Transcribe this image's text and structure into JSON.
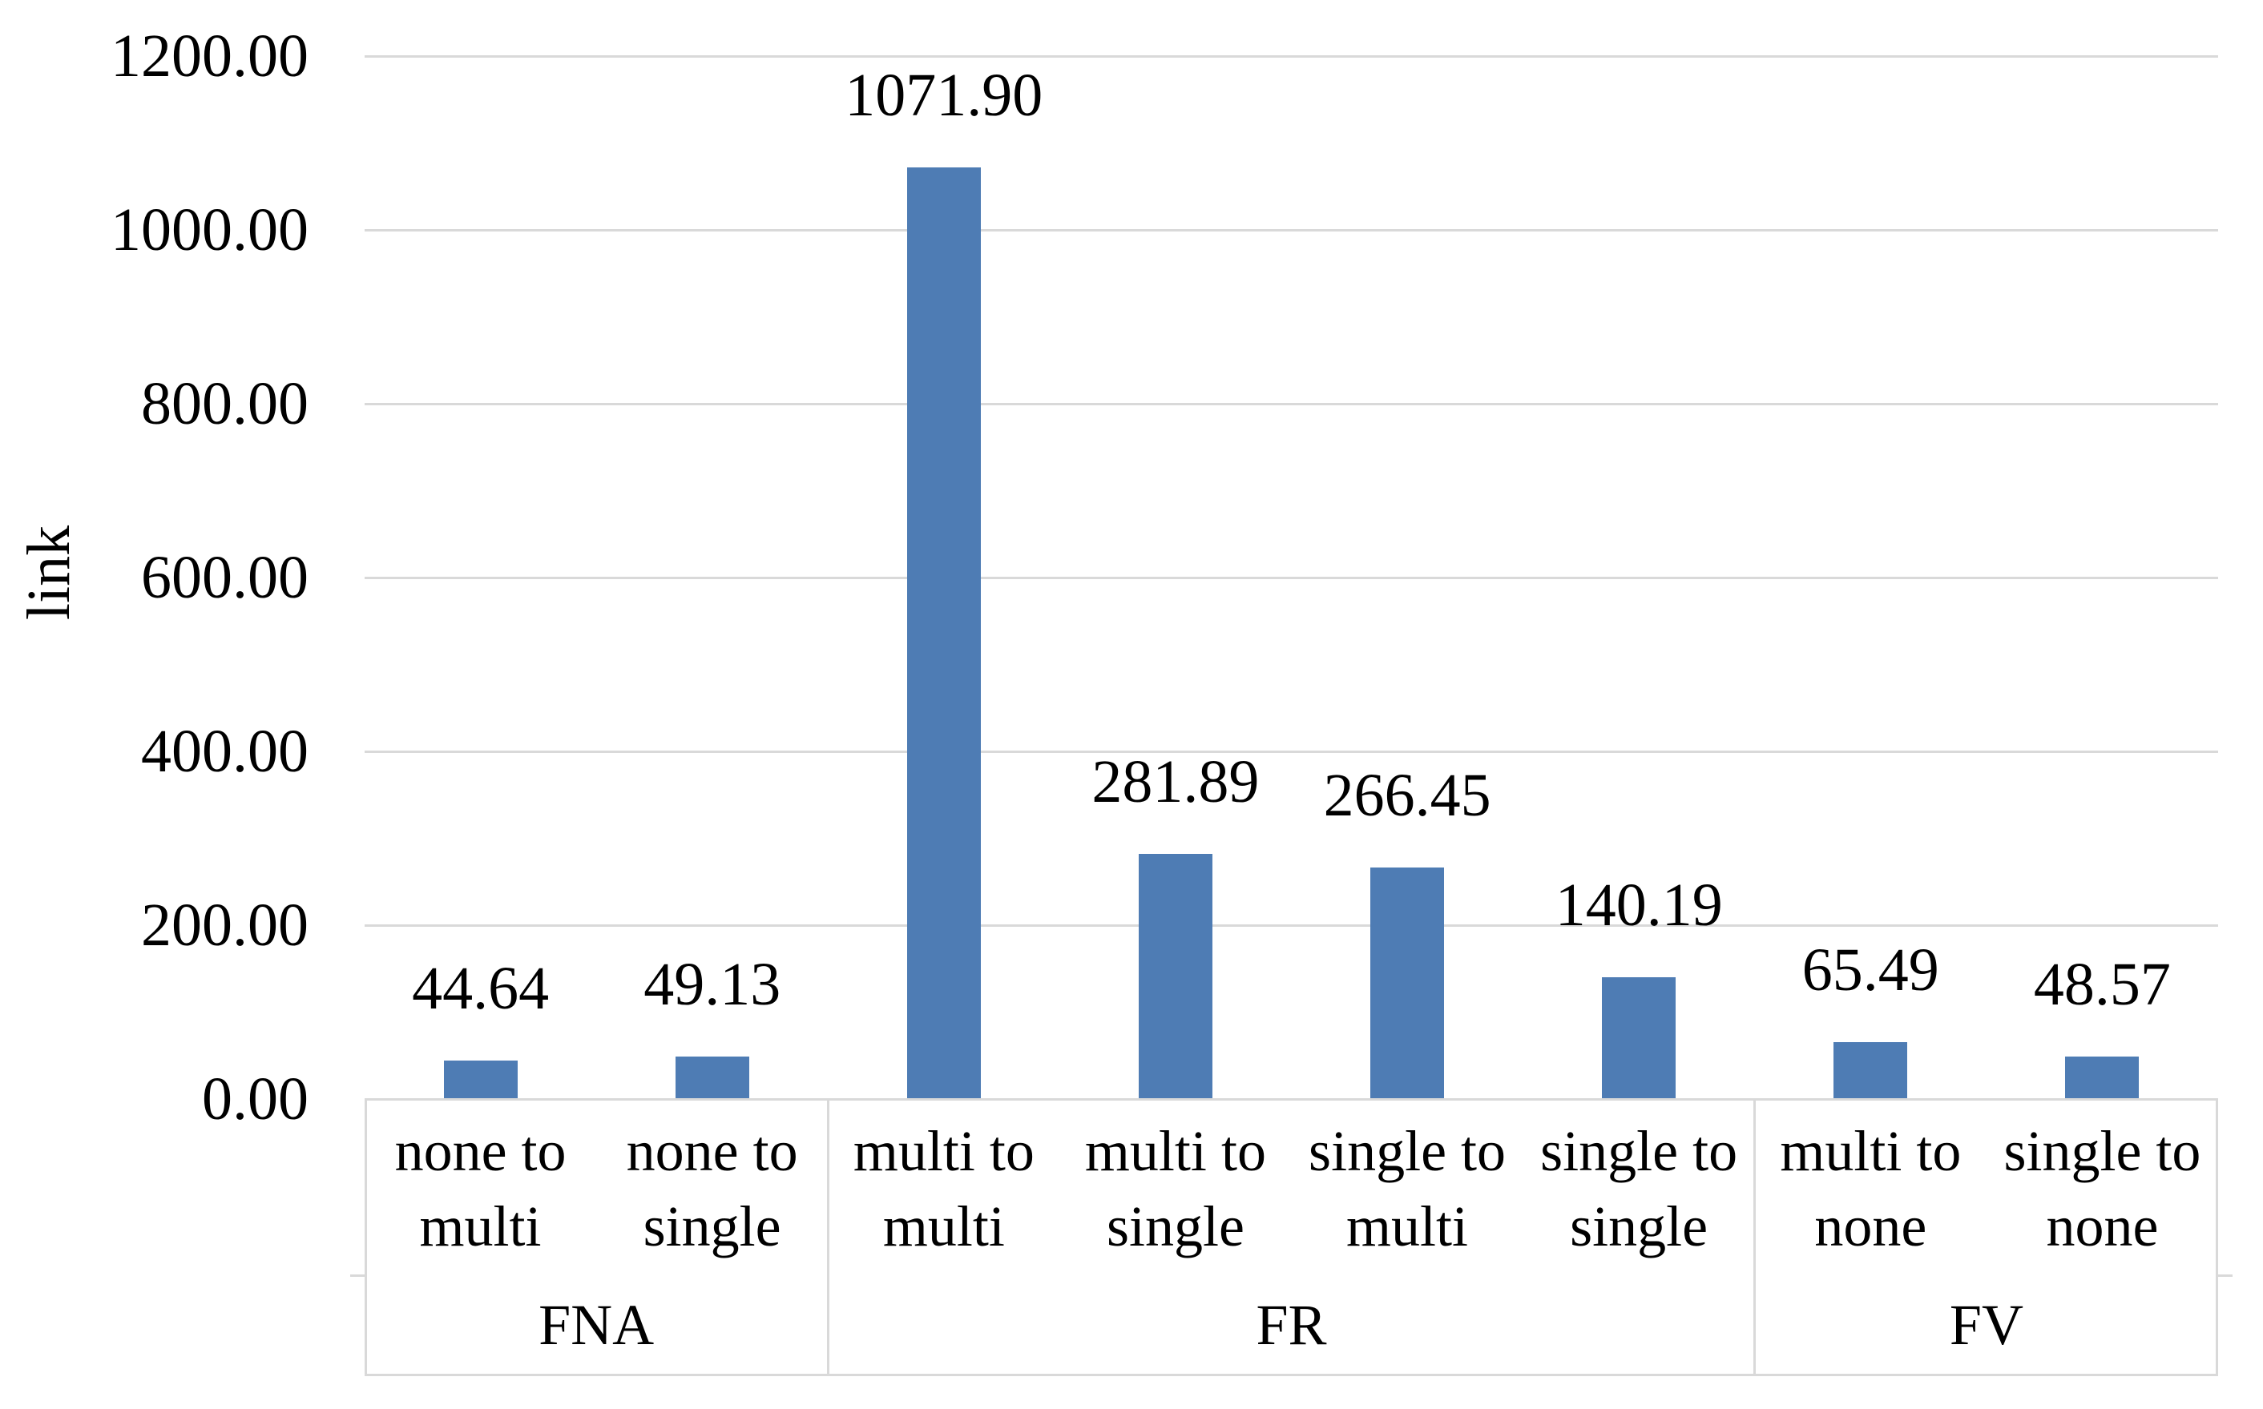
{
  "chart_data": {
    "type": "bar",
    "ylabel": "link",
    "xlabel": "",
    "ylim": [
      0,
      1200
    ],
    "ytick_step": 200,
    "ytick_labels": [
      "0.00",
      "200.00",
      "400.00",
      "600.00",
      "800.00",
      "1000.00",
      "1200.00"
    ],
    "grid": true,
    "legend": false,
    "bar_color": "#4E7CB4",
    "grid_color": "#D9D9D9",
    "axis_color": "#D9D9D9",
    "text_color": "#000000",
    "groups": [
      {
        "label": "FNA",
        "categories": [
          {
            "lines": [
              "none to",
              "multi"
            ],
            "value": 44.64,
            "label": "44.64"
          },
          {
            "lines": [
              "none to",
              "single"
            ],
            "value": 49.13,
            "label": "49.13"
          }
        ]
      },
      {
        "label": "FR",
        "categories": [
          {
            "lines": [
              "multi to",
              "multi"
            ],
            "value": 1071.9,
            "label": "1071.90"
          },
          {
            "lines": [
              "multi to",
              "single"
            ],
            "value": 281.89,
            "label": "281.89"
          },
          {
            "lines": [
              "single to",
              "multi"
            ],
            "value": 266.45,
            "label": "266.45"
          },
          {
            "lines": [
              "single to",
              "single"
            ],
            "value": 140.19,
            "label": "140.19"
          }
        ]
      },
      {
        "label": "FV",
        "categories": [
          {
            "lines": [
              "multi to",
              "none"
            ],
            "value": 65.49,
            "label": "65.49"
          },
          {
            "lines": [
              "single to",
              "none"
            ],
            "value": 48.57,
            "label": "48.57"
          }
        ]
      }
    ]
  }
}
